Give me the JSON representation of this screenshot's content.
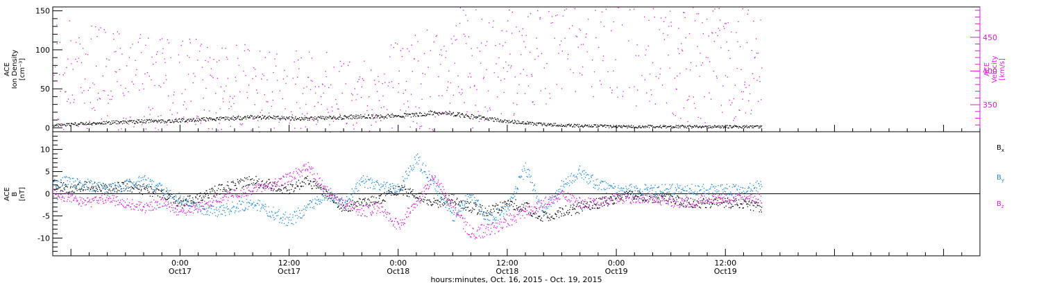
{
  "figure": {
    "xlabel": "hours:minutes, Oct. 16, 2015 - Oct. 19, 2015",
    "colors": {
      "black": "#000000",
      "magenta": "#d21bd6",
      "blue": "#1e88d6"
    }
  },
  "chart_data": [
    {
      "type": "scatter",
      "panel": "top",
      "ylabel": [
        "ACE",
        "Ion Density",
        "[cm⁻³]"
      ],
      "ylim": [
        -5,
        155
      ],
      "yticks": [
        "0",
        "50",
        "100",
        "150"
      ],
      "right_axis": {
        "ylabel": [
          "ACE",
          "Velocity",
          "[km/s]"
        ],
        "ylim": [
          310,
          495
        ],
        "yticks": [
          "350",
          "400",
          "450"
        ],
        "color": "#d21bd6"
      },
      "x_range_hours": [
        -14,
        88
      ],
      "x_ticks": [
        {
          "time": "0:00",
          "date": "Oct17",
          "hours": 0
        },
        {
          "time": "12:00",
          "date": "Oct17",
          "hours": 12
        },
        {
          "time": "0:00",
          "date": "Oct18",
          "hours": 24
        },
        {
          "time": "12:00",
          "date": "Oct18",
          "hours": 36
        },
        {
          "time": "0:00",
          "date": "Oct19",
          "hours": 48
        },
        {
          "time": "12:00",
          "date": "Oct19",
          "hours": 60
        }
      ],
      "series": [
        {
          "key": "density",
          "color": "#000000",
          "axis": "left",
          "x": [
            -14,
            -12,
            -10,
            -8,
            -6,
            -4,
            -2,
            0,
            2,
            4,
            6,
            8,
            10,
            12,
            14,
            16,
            18,
            20,
            22,
            24,
            26,
            28,
            30,
            32,
            34,
            36,
            38,
            40,
            42,
            44,
            46,
            48,
            50,
            52,
            54,
            56,
            58,
            60,
            62,
            64
          ],
          "y": [
            4,
            5,
            6,
            7,
            8,
            9,
            9,
            10,
            11,
            12,
            13,
            14,
            14,
            13,
            12,
            13,
            14,
            15,
            15,
            16,
            17,
            20,
            18,
            15,
            12,
            9,
            7,
            5,
            4,
            3,
            3,
            2,
            2,
            2,
            2,
            2,
            2,
            2,
            2,
            2
          ]
        },
        {
          "key": "velocity",
          "color": "#d21bd6",
          "axis": "right",
          "x": [
            -14,
            -13,
            -12,
            -11,
            -10,
            -8,
            -6,
            -4,
            -2,
            0,
            2,
            4,
            6,
            8,
            10,
            12,
            14,
            16,
            18,
            20,
            22,
            23.5,
            24,
            26,
            28,
            30,
            32,
            34,
            36,
            38,
            40,
            42,
            44,
            46,
            48,
            50,
            52,
            54,
            56,
            58,
            60,
            61,
            62,
            63,
            64
          ],
          "y": [
            385,
            390,
            385,
            380,
            378,
            376,
            375,
            376,
            374,
            365,
            362,
            360,
            358,
            355,
            352,
            350,
            349,
            348,
            350,
            352,
            355,
            356,
            362,
            370,
            380,
            392,
            412,
            418,
            410,
            428,
            448,
            460,
            472,
            470,
            462,
            455,
            445,
            433,
            420,
            410,
            405,
            402,
            400,
            399,
            397
          ]
        }
      ]
    },
    {
      "type": "scatter",
      "panel": "bottom",
      "ylabel": [
        "ACE",
        "B",
        "[nT]"
      ],
      "ylim": [
        -14,
        14
      ],
      "yticks": [
        "-10",
        "-5",
        "0",
        "5",
        "10"
      ],
      "x_range_hours": [
        -14,
        88
      ],
      "series": [
        {
          "key": "bx",
          "name": "B",
          "sub": "x",
          "color": "#000000",
          "x": [
            -14,
            -12,
            -10,
            -8,
            -6,
            -4,
            -2,
            0,
            2,
            4,
            6,
            8,
            10,
            12,
            14,
            16,
            18,
            20,
            22,
            24,
            26,
            28,
            30,
            32,
            34,
            36,
            38,
            40,
            42,
            44,
            46,
            48,
            50,
            52,
            54,
            56,
            58,
            60,
            62,
            64
          ],
          "y": [
            2,
            1,
            2,
            1,
            2,
            1,
            0,
            -2,
            -1,
            1,
            2,
            3,
            2,
            1,
            3,
            0,
            -3,
            -2,
            -1,
            1,
            0,
            -2,
            -1,
            -3,
            -4,
            -2,
            -3,
            -5,
            -4,
            -3,
            -2,
            -1,
            0,
            -1,
            -1,
            -2,
            -2,
            -2,
            -2,
            -3
          ]
        },
        {
          "key": "by",
          "name": "B",
          "sub": "y",
          "color": "#1e88d6",
          "x": [
            -14,
            -12,
            -10,
            -8,
            -6,
            -4,
            -2,
            0,
            2,
            4,
            6,
            8,
            10,
            12,
            14,
            16,
            18,
            20,
            22,
            24,
            26,
            28,
            30,
            32,
            34,
            36,
            38,
            40,
            42,
            44,
            46,
            48,
            50,
            52,
            54,
            56,
            58,
            60,
            62,
            64
          ],
          "y": [
            2,
            3,
            2,
            1,
            2,
            3,
            1,
            -1,
            -3,
            -4,
            -3,
            -2,
            -4,
            -6,
            -3,
            0,
            -2,
            3,
            2,
            1,
            8,
            2,
            -5,
            0,
            -6,
            -3,
            6,
            -4,
            2,
            5,
            2,
            1,
            1,
            1,
            1,
            1,
            1,
            1,
            1,
            2
          ]
        },
        {
          "key": "bz",
          "name": "B",
          "sub": "z",
          "color": "#d21bd6",
          "x": [
            -14,
            -12,
            -10,
            -8,
            -6,
            -4,
            -2,
            0,
            2,
            4,
            6,
            8,
            10,
            12,
            14,
            16,
            18,
            20,
            22,
            24,
            26,
            28,
            30,
            32,
            34,
            36,
            38,
            40,
            42,
            44,
            46,
            48,
            50,
            52,
            54,
            56,
            58,
            60,
            62,
            64
          ],
          "y": [
            0,
            -1,
            -2,
            -1,
            -2,
            -3,
            -2,
            -4,
            -3,
            -1,
            0,
            1,
            2,
            4,
            6,
            1,
            -2,
            -4,
            -3,
            -7,
            -2,
            4,
            -3,
            -9,
            -8,
            -6,
            -4,
            -2,
            0,
            -2,
            -2,
            -1,
            -1,
            -1,
            -2,
            -2,
            -1,
            -1,
            -1,
            -1
          ]
        }
      ]
    }
  ]
}
